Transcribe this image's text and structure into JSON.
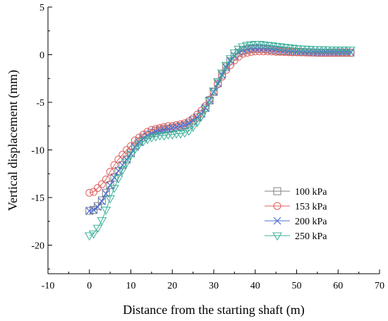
{
  "chart_data": {
    "type": "line",
    "title": "",
    "xlabel": "Distance from the starting shaft (m)",
    "ylabel": "Vertical displacement (mm)",
    "xlim": [
      -10,
      70
    ],
    "ylim": [
      -23,
      5
    ],
    "xticks": [
      -10,
      0,
      10,
      20,
      30,
      40,
      50,
      60,
      70
    ],
    "yticks": [
      -20,
      -15,
      -10,
      -5,
      0,
      5
    ],
    "grid": false,
    "legend_position": "lower-right",
    "x": [
      0,
      1,
      2,
      3,
      4,
      5,
      6,
      7,
      8,
      9,
      10,
      11,
      12,
      13,
      14,
      15,
      16,
      17,
      18,
      19,
      20,
      21,
      22,
      23,
      24,
      25,
      26,
      27,
      28,
      29,
      30,
      31,
      32,
      33,
      34,
      35,
      36,
      37,
      38,
      39,
      40,
      41,
      42,
      43,
      44,
      45,
      46,
      47,
      48,
      49,
      50,
      51,
      52,
      53,
      54,
      55,
      56,
      57,
      58,
      59,
      60,
      61,
      62,
      63
    ],
    "series": [
      {
        "name": "100 kPa",
        "color": "#808080",
        "marker": "square",
        "values": [
          -16.4,
          -16.3,
          -15.9,
          -15.3,
          -14.5,
          -13.7,
          -12.9,
          -12.2,
          -11.6,
          -11.0,
          -10.3,
          -9.6,
          -9.1,
          -8.7,
          -8.4,
          -8.2,
          -8.0,
          -7.9,
          -7.8,
          -7.8,
          -7.7,
          -7.6,
          -7.5,
          -7.4,
          -7.2,
          -6.9,
          -6.6,
          -6.2,
          -5.6,
          -4.8,
          -3.9,
          -3.0,
          -2.1,
          -1.3,
          -0.7,
          -0.2,
          0.2,
          0.4,
          0.5,
          0.6,
          0.6,
          0.6,
          0.6,
          0.55,
          0.5,
          0.45,
          0.4,
          0.38,
          0.35,
          0.32,
          0.3,
          0.28,
          0.26,
          0.24,
          0.22,
          0.21,
          0.2,
          0.2,
          0.2,
          0.2,
          0.2,
          0.2,
          0.2,
          0.2
        ]
      },
      {
        "name": "153 kPa",
        "color": "#e06060",
        "marker": "circle",
        "values": [
          -14.5,
          -14.4,
          -14.0,
          -13.6,
          -13.1,
          -12.3,
          -11.6,
          -11.0,
          -10.5,
          -10.0,
          -9.6,
          -9.0,
          -8.7,
          -8.4,
          -8.1,
          -7.9,
          -7.8,
          -7.7,
          -7.6,
          -7.5,
          -7.5,
          -7.4,
          -7.3,
          -7.2,
          -7.0,
          -6.7,
          -6.3,
          -5.9,
          -5.4,
          -4.7,
          -3.9,
          -3.1,
          -2.3,
          -1.6,
          -1.1,
          -0.6,
          -0.2,
          0.1,
          0.2,
          0.3,
          0.35,
          0.35,
          0.35,
          0.35,
          0.33,
          0.3,
          0.3,
          0.28,
          0.26,
          0.25,
          0.25,
          0.24,
          0.23,
          0.22,
          0.22,
          0.21,
          0.2,
          0.2,
          0.2,
          0.2,
          0.2,
          0.2,
          0.2,
          0.2
        ]
      },
      {
        "name": "200 kPa",
        "color": "#4f6fcf",
        "marker": "x",
        "values": [
          -16.4,
          -16.3,
          -16.0,
          -15.4,
          -14.6,
          -13.7,
          -12.9,
          -12.2,
          -11.6,
          -11.0,
          -10.4,
          -9.7,
          -9.2,
          -8.8,
          -8.5,
          -8.3,
          -8.1,
          -8.0,
          -7.9,
          -7.8,
          -7.7,
          -7.6,
          -7.5,
          -7.4,
          -7.2,
          -6.9,
          -6.6,
          -6.2,
          -5.6,
          -4.8,
          -3.9,
          -3.0,
          -2.1,
          -1.3,
          -0.6,
          -0.1,
          0.3,
          0.5,
          0.6,
          0.7,
          0.7,
          0.7,
          0.7,
          0.65,
          0.6,
          0.55,
          0.5,
          0.45,
          0.42,
          0.4,
          0.37,
          0.35,
          0.33,
          0.32,
          0.3,
          0.3,
          0.3,
          0.3,
          0.3,
          0.3,
          0.3,
          0.3,
          0.3,
          0.3
        ]
      },
      {
        "name": "250 kPa",
        "color": "#3cb09a",
        "marker": "triangle-down",
        "values": [
          -19.0,
          -18.8,
          -18.2,
          -17.4,
          -16.3,
          -15.1,
          -14.0,
          -13.0,
          -12.1,
          -11.3,
          -10.5,
          -9.9,
          -9.4,
          -9.1,
          -8.9,
          -8.7,
          -8.6,
          -8.5,
          -8.5,
          -8.4,
          -8.4,
          -8.3,
          -8.3,
          -8.2,
          -8.0,
          -7.6,
          -7.1,
          -6.5,
          -5.7,
          -4.8,
          -3.8,
          -2.8,
          -1.9,
          -1.1,
          -0.4,
          0.2,
          0.6,
          0.85,
          1.0,
          1.05,
          1.1,
          1.1,
          1.05,
          1.0,
          0.95,
          0.9,
          0.85,
          0.8,
          0.75,
          0.7,
          0.65,
          0.62,
          0.6,
          0.58,
          0.56,
          0.55,
          0.54,
          0.53,
          0.52,
          0.51,
          0.5,
          0.5,
          0.5,
          0.5
        ]
      }
    ]
  }
}
